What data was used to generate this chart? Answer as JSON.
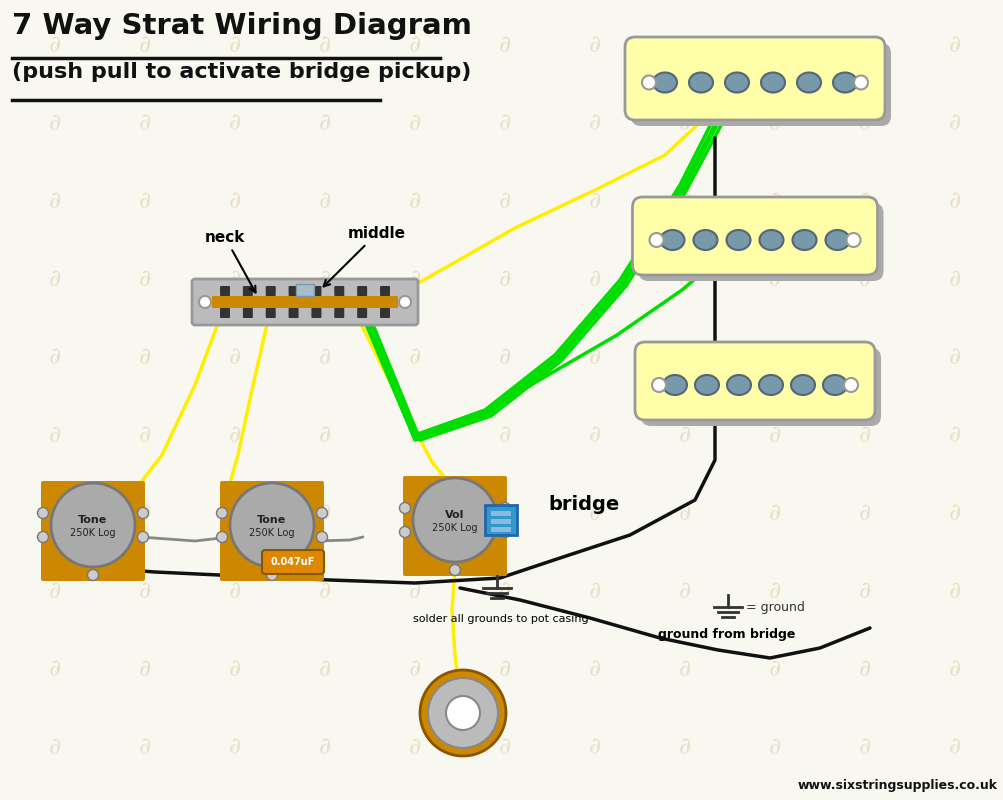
{
  "title_line1": "7 Way Strat Wiring Diagram",
  "title_line2": "(push pull to activate bridge pickup)",
  "bg_color": "#f8f8f0",
  "watermark_color": "#e8e0c8",
  "pickup_color": "#ffffaa",
  "pickup_base_color": "#999999",
  "pickup_pole_color": "#7799aa",
  "pot_body_color": "#aaaaaa",
  "pot_rim_color": "#cc8800",
  "switch_color": "#bbbbbb",
  "switch_bar_color": "#cc8800",
  "cap_color": "#dd8800",
  "connector_color": "#3399cc",
  "wire_yellow": "#ffee00",
  "wire_green": "#00dd00",
  "wire_black": "#111111",
  "wire_gray": "#888888",
  "text_color": "#111111",
  "ground_color": "#333333",
  "jack_orange": "#cc8800",
  "website": "www.sixstringsupplies.co.uk",
  "label_neck": "neck",
  "label_middle": "middle",
  "label_bridge": "bridge",
  "label_ground_bridge": "ground from bridge",
  "label_solder": "solder all grounds to pot casing",
  "label_tone1": [
    "Tone",
    "250K Log"
  ],
  "label_tone2": [
    "Tone",
    "250K Log"
  ],
  "label_vol": [
    "Vol",
    "250K Log"
  ],
  "label_cap": "0.047uF",
  "label_eq_ground": "= ground"
}
